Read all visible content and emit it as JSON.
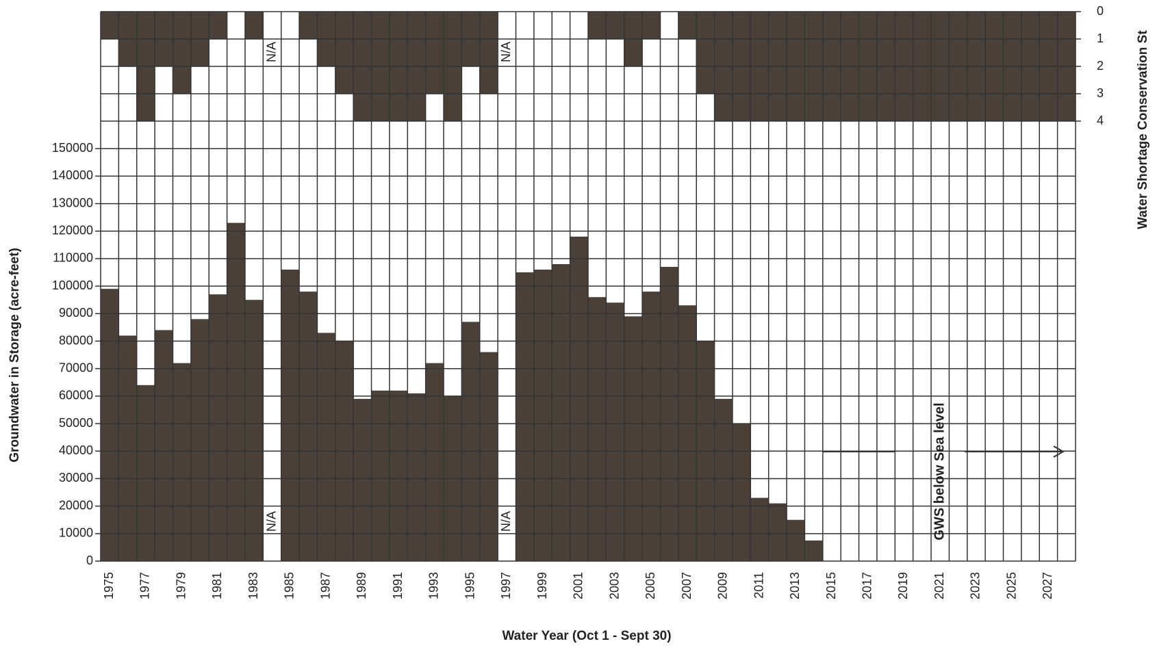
{
  "chart_data": {
    "type": "bar",
    "xlabel": "Water Year (Oct 1 - Sept 30)",
    "ylabel": "Groundwater in Storage (acre-feet)",
    "y2label": "Water Shortage Conservation St",
    "categories": [
      "1975",
      null,
      "1977",
      null,
      "1979",
      null,
      "1981",
      null,
      "1983",
      null,
      "1985",
      null,
      "1987",
      null,
      "1989",
      null,
      "1991",
      null,
      "1993",
      null,
      "1995",
      null,
      "1997",
      null,
      "1999",
      null,
      "2001",
      null,
      "2003",
      null,
      "2005",
      null,
      "2007",
      null,
      "2009",
      null,
      "2011",
      null,
      "2013",
      null,
      "2015",
      null,
      "2017",
      null,
      "2019",
      null,
      "2021",
      null,
      "2023",
      null,
      "2025",
      null,
      "2027",
      null
    ],
    "series": [
      {
        "name": "Groundwater in Storage",
        "color": "#4b4038",
        "values": [
          99000,
          82000,
          64000,
          84000,
          72000,
          88000,
          97000,
          123000,
          95000,
          null,
          106000,
          98000,
          83000,
          80000,
          59000,
          62000,
          62000,
          61000,
          72000,
          60000,
          87000,
          76000,
          null,
          105000,
          106000,
          108000,
          118000,
          96000,
          94000,
          89000,
          98000,
          107000,
          93000,
          80000,
          59000,
          50000,
          23000,
          21000,
          15000,
          7500,
          null,
          null,
          null,
          null,
          null,
          null,
          null,
          null,
          null,
          null,
          null,
          null,
          null,
          null
        ]
      },
      {
        "name": "Water Shortage Conservation Stage",
        "color": "#4b4038",
        "axis": "y2",
        "values": [
          1,
          2,
          4,
          2,
          3,
          2,
          1,
          0,
          1,
          null,
          0,
          1,
          2,
          3,
          4,
          4,
          4,
          4,
          3,
          4,
          2,
          3,
          null,
          0,
          0,
          0,
          0,
          1,
          1,
          2,
          1,
          0,
          1,
          3,
          4,
          4,
          4,
          4,
          4,
          4,
          4,
          4,
          4,
          4,
          4,
          4,
          4,
          4,
          4,
          4,
          4,
          4,
          4,
          4
        ]
      }
    ],
    "ylim": [
      0,
      160000
    ],
    "yticks": [
      0,
      10000,
      20000,
      30000,
      40000,
      50000,
      60000,
      70000,
      80000,
      90000,
      100000,
      110000,
      120000,
      130000,
      140000,
      150000
    ],
    "y2lim": [
      4,
      0
    ],
    "y2ticks": [
      0,
      1,
      2,
      3,
      4
    ],
    "annotations": [
      "N/A",
      "N/A",
      "N/A",
      "N/A",
      "GWS below Sea level"
    ],
    "grid": true
  }
}
